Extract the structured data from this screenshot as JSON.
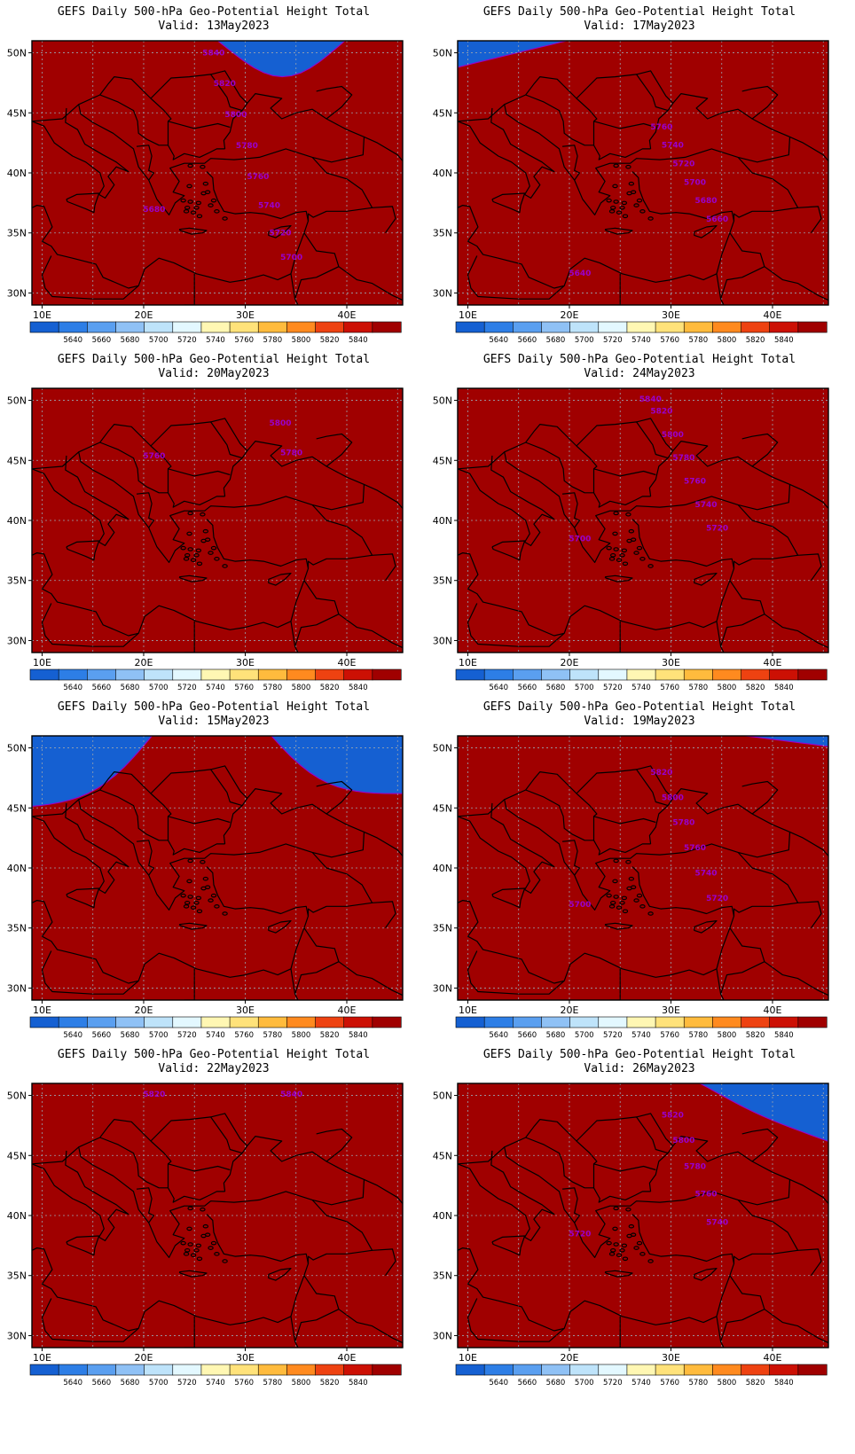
{
  "colorbar": {
    "levels": [
      "5640",
      "5660",
      "5680",
      "5700",
      "5720",
      "5740",
      "5760",
      "5780",
      "5800",
      "5820",
      "5840"
    ],
    "colors": [
      "#1560d2",
      "#2d7ee6",
      "#5a9ff0",
      "#8fc1f5",
      "#bee3fa",
      "#e3f8ff",
      "#fff7b3",
      "#ffe27a",
      "#ffbb3d",
      "#ff8a1f",
      "#ee4211",
      "#cc1004",
      "#a00000"
    ],
    "contour_color": "#9900cc"
  },
  "axes": {
    "lat_ticks": [
      "50N",
      "45N",
      "40N",
      "35N",
      "30N"
    ],
    "lon_ticks": [
      "10E",
      "20E",
      "30E",
      "40E"
    ]
  },
  "panels": [
    {
      "title": "GEFS Daily 500-hPa Geo-Potential Height Total",
      "valid": "Valid: 13May2023",
      "pattern": "trough",
      "labels": [
        "5680",
        "5700",
        "5720",
        "5740",
        "5760",
        "5780",
        "5800",
        "5820",
        "5840"
      ]
    },
    {
      "title": "GEFS Daily 500-hPa Geo-Potential Height Total",
      "valid": "Valid: 20May2023",
      "pattern": "zonal-ridge",
      "labels": [
        "5760",
        "5780",
        "5800"
      ]
    },
    {
      "title": "GEFS Daily 500-hPa Geo-Potential Height Total",
      "valid": "Valid: 15May2023",
      "pattern": "ridge",
      "labels": []
    },
    {
      "title": "GEFS Daily 500-hPa Geo-Potential Height Total",
      "valid": "Valid: 22May2023",
      "pattern": "zonal",
      "labels": [
        "5820",
        "5840"
      ]
    },
    {
      "title": "GEFS Daily 500-hPa Geo-Potential Height Total",
      "valid": "Valid: 17May2023",
      "pattern": "west-trough",
      "labels": [
        "5640",
        "5660",
        "5680",
        "5700",
        "5720",
        "5740",
        "5760"
      ]
    },
    {
      "title": "GEFS Daily 500-hPa Geo-Potential Height Total",
      "valid": "Valid: 24May2023",
      "pattern": "zonal-low",
      "labels": [
        "5700",
        "5720",
        "5740",
        "5760",
        "5780",
        "5800",
        "5820",
        "5840"
      ]
    },
    {
      "title": "GEFS Daily 500-hPa Geo-Potential Height Total",
      "valid": "Valid: 19May2023",
      "pattern": "zonal-high",
      "labels": [
        "5700",
        "5720",
        "5740",
        "5760",
        "5780",
        "5800",
        "5820"
      ]
    },
    {
      "title": "GEFS Daily 500-hPa Geo-Potential Height Total",
      "valid": "Valid: 26May2023",
      "pattern": "cutoff",
      "labels": [
        "5720",
        "5740",
        "5760",
        "5780",
        "5800",
        "5820"
      ]
    }
  ]
}
